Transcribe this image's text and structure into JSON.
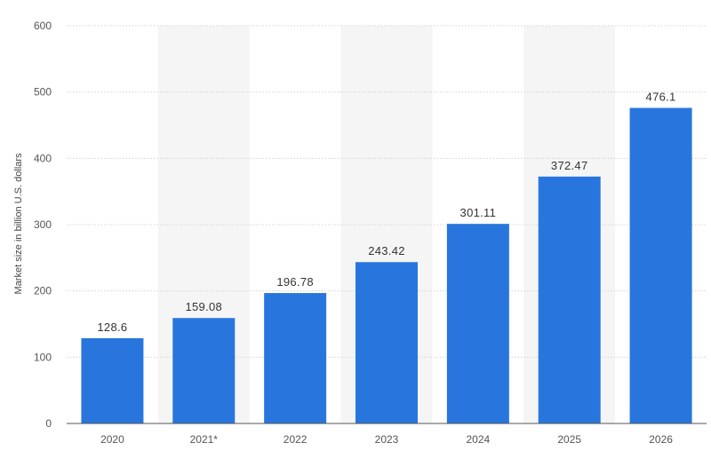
{
  "chart_data": {
    "type": "bar",
    "title": "",
    "xlabel": "",
    "ylabel": "Market size in billion U.S. dollars",
    "categories": [
      "2020",
      "2021*",
      "2022",
      "2023",
      "2024",
      "2025",
      "2026"
    ],
    "values": [
      128.6,
      159.08,
      196.78,
      243.42,
      301.11,
      372.47,
      476.1
    ],
    "value_labels": [
      "128.6",
      "159.08",
      "196.78",
      "243.42",
      "301.11",
      "372.47",
      "476.1"
    ],
    "y_ticks": [
      0,
      100,
      200,
      300,
      400,
      500,
      600
    ],
    "ylim": [
      0,
      600
    ],
    "grid": true,
    "legend": "none"
  },
  "colors": {
    "bar": "#2876dd",
    "grid": "#d4d4d4",
    "band": "#f5f5f5",
    "baseline": "#555555"
  }
}
